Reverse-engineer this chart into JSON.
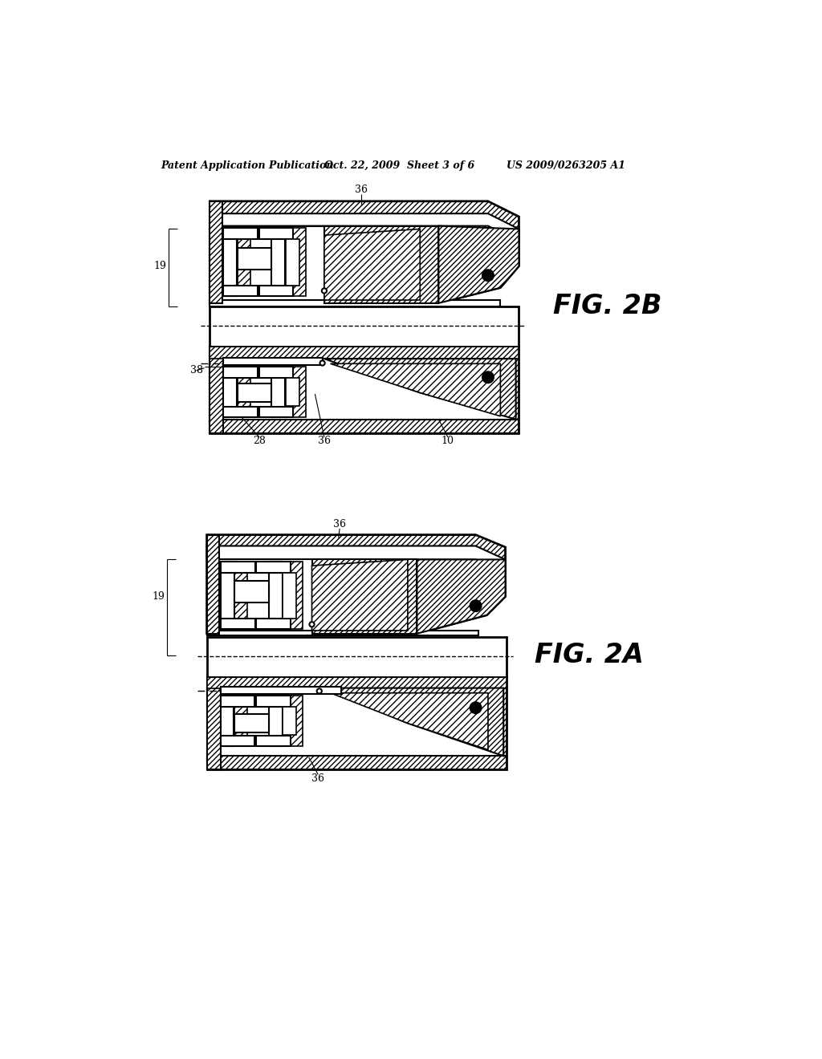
{
  "title_left": "Patent Application Publication",
  "title_mid": "Oct. 22, 2009  Sheet 3 of 6",
  "title_right": "US 2009/0263205 A1",
  "fig2b_label": "FIG. 2B",
  "fig2a_label": "FIG. 2A",
  "background_color": "#ffffff",
  "line_color": "#000000"
}
